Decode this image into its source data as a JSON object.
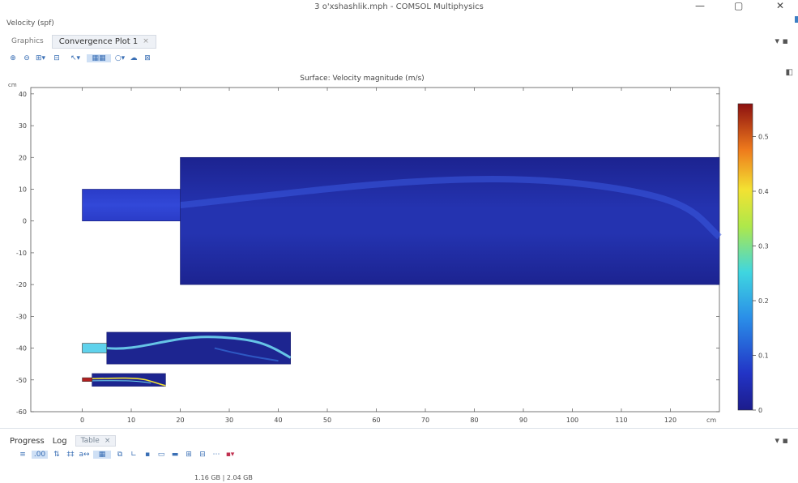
{
  "window": {
    "title": "3 o'xshashlik.mph - COMSOL Multiphysics",
    "minimize": "—",
    "maximize": "▢",
    "close": "✕"
  },
  "panel": {
    "velocity_label": "Velocity (spf)",
    "tabs": [
      {
        "label": "Graphics"
      },
      {
        "label": "Convergence Plot 1",
        "close": "×"
      }
    ],
    "menu": "▾ ▪"
  },
  "toolbar": {
    "icons": [
      "zoom-box-icon",
      "zoom-extents-icon",
      "zoom-dropdown-icon",
      "axes-icon",
      "select-icon",
      "render-icon",
      "scene-light-icon",
      "camera-icon",
      "print-icon"
    ]
  },
  "plot": {
    "title": "Surface: Velocity magnitude (m/s)",
    "x_unit": "cm",
    "y_unit": "cm",
    "x_ticks": [
      0,
      10,
      20,
      30,
      40,
      50,
      60,
      70,
      80,
      90,
      100,
      110,
      120
    ],
    "y_ticks": [
      40,
      30,
      20,
      10,
      0,
      -10,
      -20,
      -30,
      -40,
      -50,
      -60
    ],
    "xlim": [
      -10.5,
      130
    ],
    "ylim": [
      -60,
      42
    ],
    "geometry": {
      "main_inlet": {
        "x": [
          0,
          20
        ],
        "y": [
          0,
          10
        ]
      },
      "main_chamber": {
        "x": [
          20,
          130
        ],
        "y": [
          -20,
          20
        ]
      },
      "mid_inlet": {
        "x": [
          0,
          5
        ],
        "y": [
          -41.5,
          -38.5
        ]
      },
      "mid_chamber": {
        "x": [
          5,
          42.5
        ],
        "y": [
          -45,
          -35
        ]
      },
      "small_inlet": {
        "x": [
          0,
          2
        ],
        "y": [
          -50.5,
          -49.3
        ]
      },
      "small_chamber": {
        "x": [
          2,
          17
        ],
        "y": [
          -52,
          -48
        ]
      }
    },
    "colorbar": {
      "ticks": [
        "0.5",
        "0.4",
        "0.3",
        "0.2",
        "0.1",
        "0"
      ],
      "tick_values": [
        0.5,
        0.4,
        0.3,
        0.2,
        0.1,
        0
      ],
      "max": 0.56,
      "min": 0
    },
    "colors": {
      "domain_dark": "#1d2496",
      "domain_mid": "#2a3cc8",
      "jet_light": "#6fd6f0",
      "jet_red": "#b02020"
    }
  },
  "bottom": {
    "tabs": [
      {
        "label": "Progress"
      },
      {
        "label": "Log"
      },
      {
        "label": "Table",
        "close": "×"
      }
    ],
    "menu": "▾ ▪",
    "memory": "1.16 GB | 2.04 GB"
  }
}
